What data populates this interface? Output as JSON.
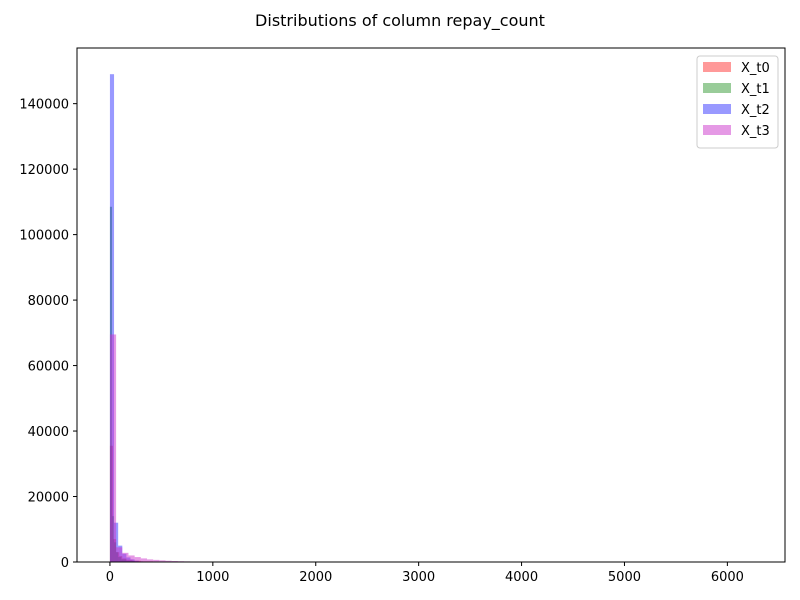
{
  "chart_data": {
    "type": "histogram",
    "title": "Distributions of column repay_count",
    "xlabel": "",
    "ylabel": "",
    "xlim": [
      -320,
      6560
    ],
    "ylim": [
      0,
      157000
    ],
    "x_ticks": [
      0,
      1000,
      2000,
      3000,
      4000,
      5000,
      6000
    ],
    "y_ticks": [
      0,
      20000,
      40000,
      60000,
      80000,
      100000,
      120000,
      140000
    ],
    "x_tick_labels": [
      "0",
      "1000",
      "2000",
      "3000",
      "4000",
      "5000",
      "6000"
    ],
    "y_tick_labels": [
      "0",
      "20000",
      "40000",
      "60000",
      "80000",
      "100000",
      "120000",
      "140000"
    ],
    "grid": false,
    "legend_position": "top-right",
    "series": [
      {
        "name": "X_t0",
        "color": "#ff0000",
        "opacity": 0.4,
        "bins": [
          {
            "x0": 0,
            "x1": 30,
            "count": 35500
          },
          {
            "x0": 30,
            "x1": 60,
            "count": 7000
          },
          {
            "x0": 60,
            "x1": 90,
            "count": 3000
          },
          {
            "x0": 90,
            "x1": 120,
            "count": 1800
          },
          {
            "x0": 120,
            "x1": 160,
            "count": 1100
          },
          {
            "x0": 160,
            "x1": 220,
            "count": 700
          },
          {
            "x0": 220,
            "x1": 300,
            "count": 400
          },
          {
            "x0": 300,
            "x1": 420,
            "count": 200
          },
          {
            "x0": 420,
            "x1": 600,
            "count": 80
          }
        ]
      },
      {
        "name": "X_t1",
        "color": "#008000",
        "opacity": 0.4,
        "bins": [
          {
            "x0": 0,
            "x1": 20,
            "count": 108500
          },
          {
            "x0": 20,
            "x1": 40,
            "count": 14000
          },
          {
            "x0": 40,
            "x1": 60,
            "count": 6000
          },
          {
            "x0": 60,
            "x1": 80,
            "count": 3000
          },
          {
            "x0": 80,
            "x1": 110,
            "count": 1500
          },
          {
            "x0": 110,
            "x1": 160,
            "count": 800
          },
          {
            "x0": 160,
            "x1": 240,
            "count": 350
          },
          {
            "x0": 240,
            "x1": 360,
            "count": 120
          }
        ]
      },
      {
        "name": "X_t2",
        "color": "#0000ff",
        "opacity": 0.4,
        "bins": [
          {
            "x0": 0,
            "x1": 40,
            "count": 149000
          },
          {
            "x0": 40,
            "x1": 80,
            "count": 12000
          },
          {
            "x0": 80,
            "x1": 120,
            "count": 5000
          },
          {
            "x0": 120,
            "x1": 160,
            "count": 2500
          },
          {
            "x0": 160,
            "x1": 200,
            "count": 1400
          },
          {
            "x0": 200,
            "x1": 240,
            "count": 800
          },
          {
            "x0": 240,
            "x1": 280,
            "count": 400
          },
          {
            "x0": 280,
            "x1": 320,
            "count": 200
          },
          {
            "x0": 320,
            "x1": 360,
            "count": 100
          }
        ]
      },
      {
        "name": "X_t3",
        "color": "#cc33cc",
        "opacity": 0.5,
        "bins": [
          {
            "x0": 0,
            "x1": 60,
            "count": 69500
          },
          {
            "x0": 60,
            "x1": 120,
            "count": 4500
          },
          {
            "x0": 120,
            "x1": 180,
            "count": 2800
          },
          {
            "x0": 180,
            "x1": 240,
            "count": 2000
          },
          {
            "x0": 240,
            "x1": 300,
            "count": 1500
          },
          {
            "x0": 300,
            "x1": 360,
            "count": 1100
          },
          {
            "x0": 360,
            "x1": 420,
            "count": 800
          },
          {
            "x0": 420,
            "x1": 480,
            "count": 650
          },
          {
            "x0": 480,
            "x1": 540,
            "count": 500
          },
          {
            "x0": 540,
            "x1": 600,
            "count": 380
          },
          {
            "x0": 600,
            "x1": 660,
            "count": 300
          },
          {
            "x0": 660,
            "x1": 720,
            "count": 240
          },
          {
            "x0": 720,
            "x1": 780,
            "count": 190
          },
          {
            "x0": 780,
            "x1": 840,
            "count": 150
          },
          {
            "x0": 840,
            "x1": 900,
            "count": 120
          },
          {
            "x0": 900,
            "x1": 960,
            "count": 90
          },
          {
            "x0": 960,
            "x1": 1100,
            "count": 50
          },
          {
            "x0": 1100,
            "x1": 1400,
            "count": 25
          }
        ]
      }
    ]
  }
}
